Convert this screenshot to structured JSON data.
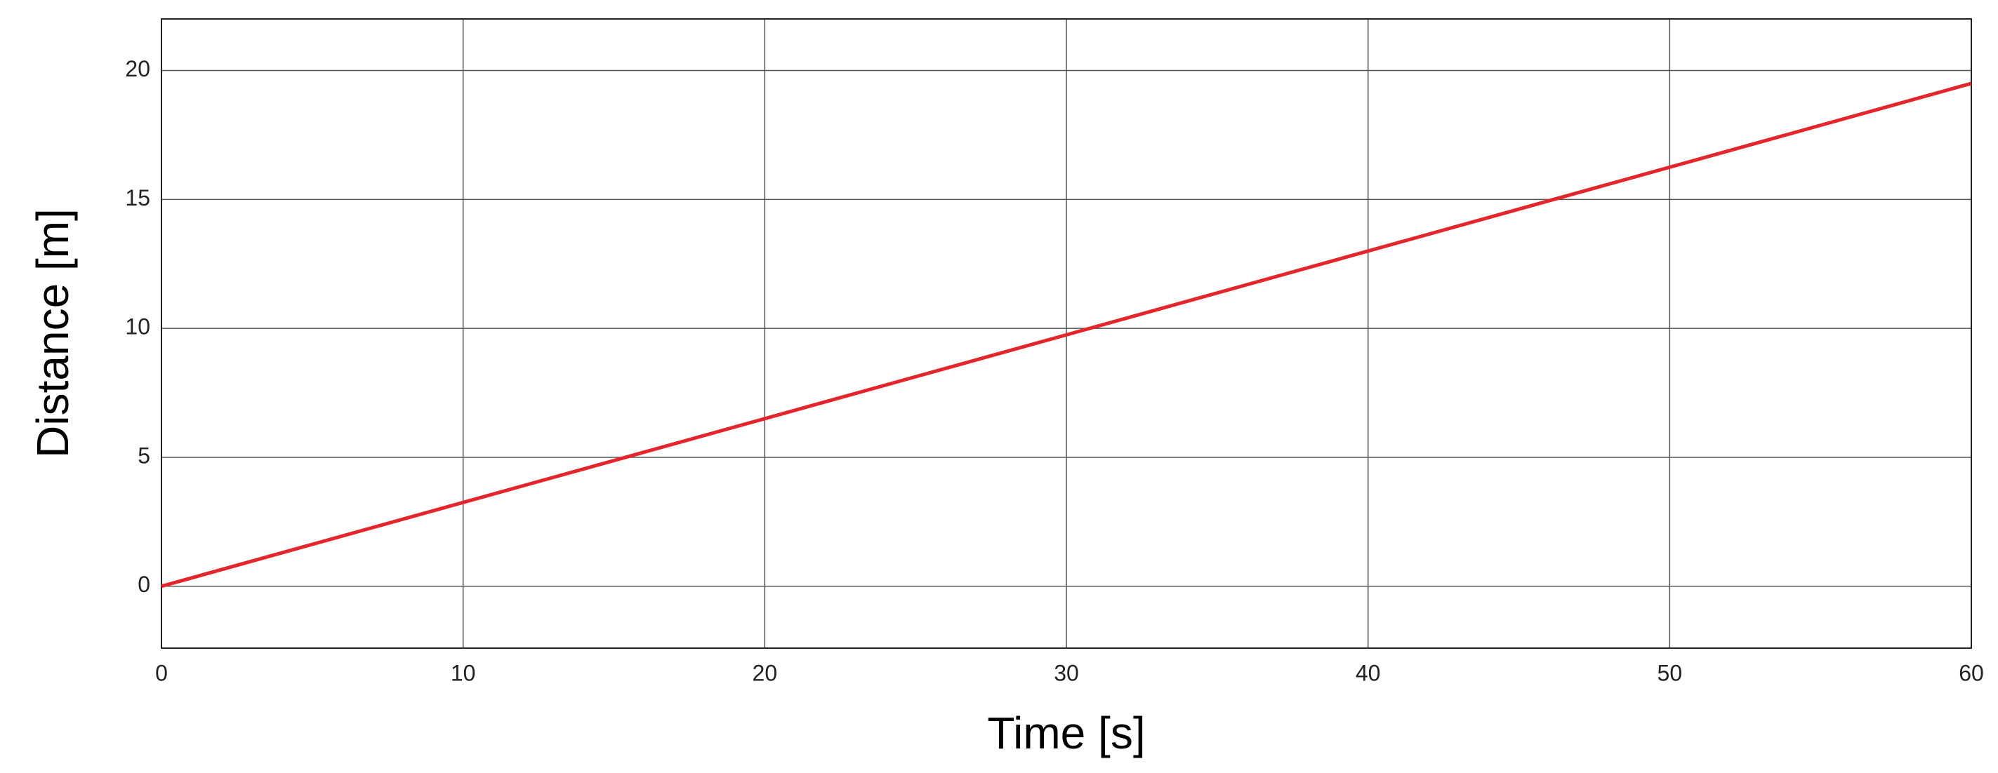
{
  "chart_data": {
    "type": "line",
    "x_label": "Time [s]",
    "y_label": "Distance [m]",
    "x": [
      0,
      60
    ],
    "series": [
      {
        "color": "#e3262b",
        "values": [
          0,
          19.5
        ]
      }
    ],
    "xlim": [
      0,
      60
    ],
    "xticks": [
      0,
      10,
      20,
      30,
      40,
      50,
      60
    ],
    "ylim": [
      -2.4,
      22
    ],
    "yticks": [
      0,
      5,
      10,
      15,
      20
    ],
    "grid": true
  }
}
